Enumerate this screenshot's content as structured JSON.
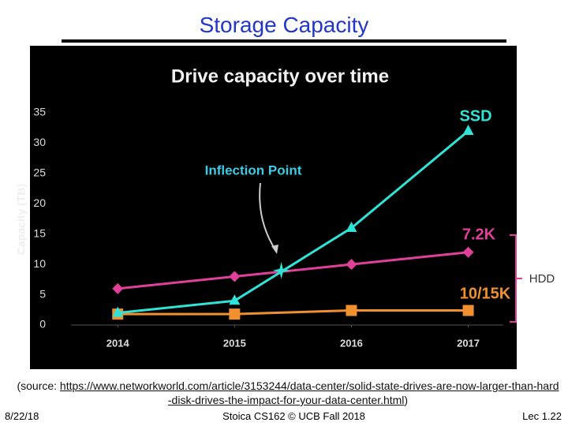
{
  "slide_title": "Storage Capacity",
  "chart_data": {
    "type": "line",
    "title": "Drive capacity over time",
    "y_label": "Capacity (TB)",
    "x": [
      2014,
      2015,
      2016,
      2017
    ],
    "xlim": [
      2013.6,
      2017.3
    ],
    "xticks": [
      2014,
      2015,
      2016,
      2017
    ],
    "ylim": [
      0,
      35
    ],
    "yticks": [
      0,
      5,
      10,
      15,
      20,
      25,
      30,
      35
    ],
    "grid": false,
    "series": [
      {
        "name": "SSD",
        "color": "#2fe3d6",
        "marker": "triangle",
        "values": [
          2,
          4,
          16,
          32
        ]
      },
      {
        "name": "7.2K",
        "color": "#e0409a",
        "marker": "diamond",
        "values": [
          6,
          8,
          10,
          12
        ]
      },
      {
        "name": "10/15K",
        "color": "#f0902e",
        "marker": "square",
        "values": [
          1.8,
          1.8,
          2.4,
          2.4
        ]
      }
    ],
    "annotation": {
      "text": "Inflection Point",
      "x": 2015.4,
      "y": 9
    },
    "group_label": "HDD"
  },
  "source": {
    "prefix": "(source: ",
    "url": "https://www.networkworld.com/article/3153244/data-center/solid-state-drives-are-now-larger-than-hard-disk-drives-the-impact-for-your-data-center.html",
    "suffix": ")"
  },
  "footer": {
    "date": "8/22/18",
    "center": "Stoica CS162 © UCB Fall 2018",
    "page": "Lec 1.22"
  }
}
